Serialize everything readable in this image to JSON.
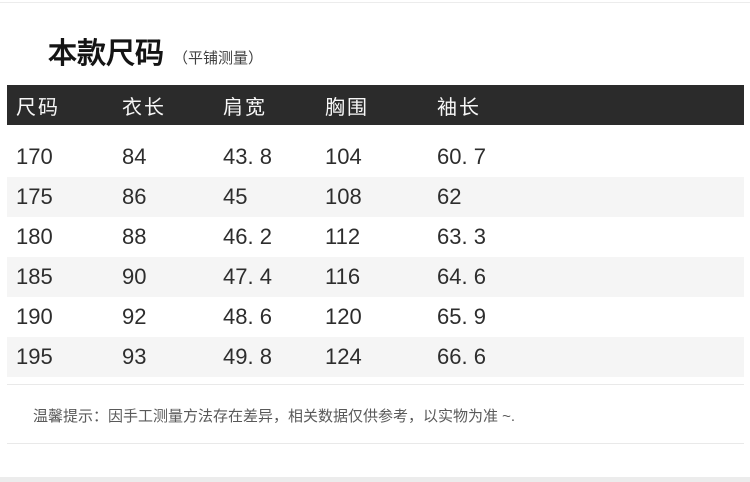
{
  "header": {
    "title": "本款尺码",
    "subtitle": "（平铺测量）"
  },
  "table": {
    "columns": [
      "尺码",
      "衣长",
      "肩宽",
      "胸围",
      "袖长"
    ],
    "rows": [
      [
        "170",
        "84",
        "43. 8",
        "104",
        "60. 7"
      ],
      [
        "175",
        "86",
        "45",
        "108",
        "62"
      ],
      [
        "180",
        "88",
        "46. 2",
        "112",
        "63. 3"
      ],
      [
        "185",
        "90",
        "47. 4",
        "116",
        "64. 6"
      ],
      [
        "190",
        "92",
        "48. 6",
        "120",
        "65. 9"
      ],
      [
        "195",
        "93",
        "49. 8",
        "124",
        "66. 6"
      ]
    ]
  },
  "note": {
    "text": "温馨提示：因手工测量方法存在差异，相关数据仅供参考，以实物为准 ~."
  },
  "colors": {
    "header_bg": "#2b2b2b",
    "header_text": "#f7f7f7",
    "row_alt_bg": "#f5f5f5",
    "body_text": "#2d2d2d",
    "note_text": "#595959",
    "divider": "#e9e9e9",
    "bottom_strip": "#ececec"
  }
}
